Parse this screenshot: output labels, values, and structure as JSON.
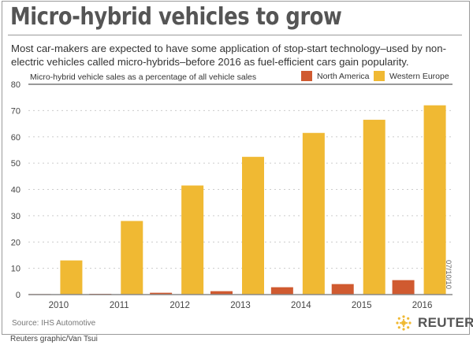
{
  "header": {
    "title": "Micro-hybrid vehicles to grow",
    "subtitle": "Most car-makers are expected to have some application of stop-start technology–used by non-electric vehicles called micro-hybrids–before 2016 as fuel-efficient cars gain popularity."
  },
  "footer": {
    "source": "Source: IHS Automotive",
    "credit": "Reuters graphic/Van Tsui",
    "date": "07/10/10",
    "logo_text": "REUTERS"
  },
  "colors": {
    "north_america": "#d05a30",
    "western_europe": "#f0b933",
    "grid": "#cccccc",
    "axis": "#888888"
  },
  "chart_data": {
    "type": "bar",
    "title": "Micro-hybrid vehicles to grow",
    "ylabel": "Micro-hybrid vehicle sales as a percentage of all vehicle sales",
    "xlabel": "",
    "categories": [
      "2010",
      "2011",
      "2012",
      "2013",
      "2014",
      "2015",
      "2016"
    ],
    "series": [
      {
        "name": "North America",
        "values": [
          0.2,
          0.3,
          0.7,
          1.3,
          2.8,
          4.0,
          5.5
        ]
      },
      {
        "name": "Western Europe",
        "values": [
          13,
          28,
          41.5,
          52.4,
          61.5,
          66.5,
          72
        ]
      }
    ],
    "ylim": [
      0,
      80
    ],
    "yticks": [
      0,
      10,
      20,
      30,
      40,
      50,
      60,
      70,
      80
    ],
    "grid": true,
    "legend_position": "top-right"
  }
}
